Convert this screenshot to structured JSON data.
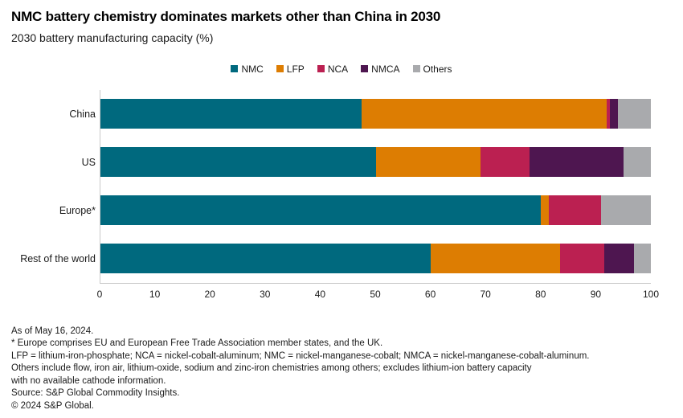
{
  "header": {
    "title": "NMC battery chemistry dominates markets other than China in 2030",
    "subtitle": "2030 battery manufacturing capacity (%)"
  },
  "chart_data": {
    "type": "bar",
    "stacked": true,
    "orientation": "horizontal",
    "title": "NMC battery chemistry dominates markets other than China in 2030",
    "subtitle": "2030 battery manufacturing capacity (%)",
    "categories": [
      "China",
      "US",
      "Europe*",
      "Rest of the world"
    ],
    "series": [
      {
        "name": "NMC",
        "color": "#00697E",
        "values": [
          47.5,
          50,
          80,
          60
        ]
      },
      {
        "name": "LFP",
        "color": "#DD7D02",
        "values": [
          44.5,
          19,
          1.5,
          23.5
        ]
      },
      {
        "name": "NCA",
        "color": "#BB2051",
        "values": [
          0.5,
          9,
          9.5,
          8
        ]
      },
      {
        "name": "NMCA",
        "color": "#4E1650",
        "values": [
          1.5,
          17,
          0,
          5.5
        ]
      },
      {
        "name": "Others",
        "color": "#A9AAAD",
        "values": [
          6,
          5,
          9,
          3
        ]
      }
    ],
    "xlim": [
      0,
      100
    ],
    "xticks": [
      0,
      10,
      20,
      30,
      40,
      50,
      60,
      70,
      80,
      90,
      100
    ],
    "legend_position": "top-center",
    "grid": false
  },
  "footnotes": [
    "As of May 16, 2024.",
    "* Europe comprises EU and European Free Trade Association member states, and the UK.",
    "LFP = lithium-iron-phosphate; NCA = nickel-cobalt-aluminum; NMC = nickel-manganese-cobalt; NMCA = nickel-manganese-cobalt-aluminum.",
    "Others include flow, iron air, lithium-oxide, sodium and zinc-iron chemistries among others; excludes lithium-ion battery capacity",
    "with no available cathode information.",
    "Source: S&P Global Commodity Insights.",
    "© 2024 S&P Global."
  ]
}
